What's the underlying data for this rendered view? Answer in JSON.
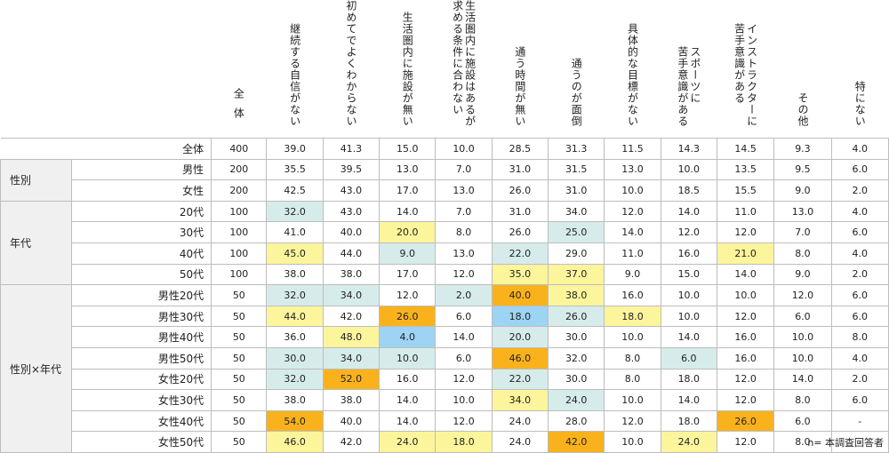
{
  "chart_data": {
    "type": "table",
    "total_label": "全体",
    "columns": [
      "継続する自信がない",
      "初めてでよくわからない",
      "生活圏内に施設が無い",
      "生活圏内に施設はあるが\n求める条件に合わない",
      "通う時間が無い",
      "通うのが面倒",
      "具体的な目標がない",
      "スポーツに\n苦手意識がある",
      "インストラクターに\n苦手意識がある",
      "その他",
      "特にない"
    ],
    "groups": [
      {
        "label": "",
        "rows": [
          {
            "label": "全体",
            "n": "400",
            "values": [
              "39.0",
              "41.3",
              "15.0",
              "10.0",
              "28.5",
              "31.3",
              "11.5",
              "14.3",
              "14.5",
              "9.3",
              "4.0"
            ],
            "hl": [
              "",
              "",
              "",
              "",
              "",
              "",
              "",
              "",
              "",
              "",
              ""
            ]
          }
        ]
      },
      {
        "label": "性別",
        "rows": [
          {
            "label": "男性",
            "n": "200",
            "values": [
              "35.5",
              "39.5",
              "13.0",
              "7.0",
              "31.0",
              "31.5",
              "13.0",
              "10.0",
              "13.5",
              "9.5",
              "6.0"
            ],
            "hl": [
              "",
              "",
              "",
              "",
              "",
              "",
              "",
              "",
              "",
              "",
              ""
            ]
          },
          {
            "label": "女性",
            "n": "200",
            "values": [
              "42.5",
              "43.0",
              "17.0",
              "13.0",
              "26.0",
              "31.0",
              "10.0",
              "18.5",
              "15.5",
              "9.0",
              "2.0"
            ],
            "hl": [
              "",
              "",
              "",
              "",
              "",
              "",
              "",
              "",
              "",
              "",
              ""
            ]
          }
        ]
      },
      {
        "label": "年代",
        "rows": [
          {
            "label": "20代",
            "n": "100",
            "values": [
              "32.0",
              "43.0",
              "14.0",
              "7.0",
              "31.0",
              "34.0",
              "12.0",
              "14.0",
              "11.0",
              "13.0",
              "4.0"
            ],
            "hl": [
              "lightblue",
              "",
              "",
              "",
              "",
              "",
              "",
              "",
              "",
              "",
              ""
            ]
          },
          {
            "label": "30代",
            "n": "100",
            "values": [
              "41.0",
              "40.0",
              "20.0",
              "8.0",
              "26.0",
              "25.0",
              "14.0",
              "12.0",
              "12.0",
              "7.0",
              "6.0"
            ],
            "hl": [
              "",
              "",
              "yellow",
              "",
              "",
              "lightblue",
              "",
              "",
              "",
              "",
              ""
            ]
          },
          {
            "label": "40代",
            "n": "100",
            "values": [
              "45.0",
              "44.0",
              "9.0",
              "13.0",
              "22.0",
              "29.0",
              "11.0",
              "16.0",
              "21.0",
              "8.0",
              "4.0"
            ],
            "hl": [
              "yellow",
              "",
              "lightblue",
              "",
              "lightblue",
              "",
              "",
              "",
              "yellow",
              "",
              ""
            ]
          },
          {
            "label": "50代",
            "n": "100",
            "values": [
              "38.0",
              "38.0",
              "17.0",
              "12.0",
              "35.0",
              "37.0",
              "9.0",
              "15.0",
              "14.0",
              "9.0",
              "2.0"
            ],
            "hl": [
              "",
              "",
              "",
              "",
              "yellow",
              "yellow",
              "",
              "",
              "",
              "",
              ""
            ]
          }
        ]
      },
      {
        "label": "性別×年代",
        "rows": [
          {
            "label": "男性20代",
            "n": "50",
            "values": [
              "32.0",
              "34.0",
              "12.0",
              "2.0",
              "40.0",
              "38.0",
              "16.0",
              "10.0",
              "10.0",
              "12.0",
              "6.0"
            ],
            "hl": [
              "lightblue",
              "lightblue",
              "",
              "lightblue",
              "orange",
              "yellow",
              "",
              "",
              "",
              "",
              ""
            ]
          },
          {
            "label": "男性30代",
            "n": "50",
            "values": [
              "44.0",
              "42.0",
              "26.0",
              "6.0",
              "18.0",
              "26.0",
              "18.0",
              "10.0",
              "12.0",
              "6.0",
              "6.0"
            ],
            "hl": [
              "yellow",
              "",
              "orange",
              "",
              "blue",
              "lightblue",
              "yellow",
              "",
              "",
              "",
              ""
            ]
          },
          {
            "label": "男性40代",
            "n": "50",
            "values": [
              "36.0",
              "48.0",
              "4.0",
              "14.0",
              "20.0",
              "30.0",
              "10.0",
              "14.0",
              "16.0",
              "10.0",
              "8.0"
            ],
            "hl": [
              "",
              "yellow",
              "blue",
              "",
              "lightblue",
              "",
              "",
              "",
              "",
              "",
              ""
            ]
          },
          {
            "label": "男性50代",
            "n": "50",
            "values": [
              "30.0",
              "34.0",
              "10.0",
              "6.0",
              "46.0",
              "32.0",
              "8.0",
              "6.0",
              "16.0",
              "10.0",
              "4.0"
            ],
            "hl": [
              "lightblue",
              "lightblue",
              "lightblue",
              "",
              "orange",
              "",
              "",
              "lightblue",
              "",
              "",
              ""
            ]
          },
          {
            "label": "女性20代",
            "n": "50",
            "values": [
              "32.0",
              "52.0",
              "16.0",
              "12.0",
              "22.0",
              "30.0",
              "8.0",
              "18.0",
              "12.0",
              "14.0",
              "2.0"
            ],
            "hl": [
              "lightblue",
              "orange",
              "",
              "",
              "lightblue",
              "",
              "",
              "",
              "",
              "",
              ""
            ]
          },
          {
            "label": "女性30代",
            "n": "50",
            "values": [
              "38.0",
              "38.0",
              "14.0",
              "10.0",
              "34.0",
              "24.0",
              "10.0",
              "14.0",
              "12.0",
              "8.0",
              "6.0"
            ],
            "hl": [
              "",
              "",
              "",
              "",
              "yellow",
              "lightblue",
              "",
              "",
              "",
              "",
              ""
            ]
          },
          {
            "label": "女性40代",
            "n": "50",
            "values": [
              "54.0",
              "40.0",
              "14.0",
              "12.0",
              "24.0",
              "28.0",
              "12.0",
              "18.0",
              "26.0",
              "6.0",
              "-"
            ],
            "hl": [
              "orange",
              "",
              "",
              "",
              "",
              "",
              "",
              "",
              "orange",
              "",
              ""
            ]
          },
          {
            "label": "女性50代",
            "n": "50",
            "values": [
              "46.0",
              "42.0",
              "24.0",
              "18.0",
              "24.0",
              "42.0",
              "10.0",
              "24.0",
              "12.0",
              "8.0",
              "-"
            ],
            "hl": [
              "yellow",
              "",
              "yellow",
              "yellow",
              "",
              "orange",
              "",
              "yellow",
              "",
              "",
              ""
            ]
          }
        ]
      }
    ]
  },
  "note": "n= 本調査回答者",
  "colors": {
    "lightblue": "#d6ecea",
    "yellow": "#fdf59c",
    "orange": "#f9b21c",
    "blue": "#9dd3f3",
    "group_bg": "#f0f0f0",
    "border": "#bdbdbd"
  }
}
